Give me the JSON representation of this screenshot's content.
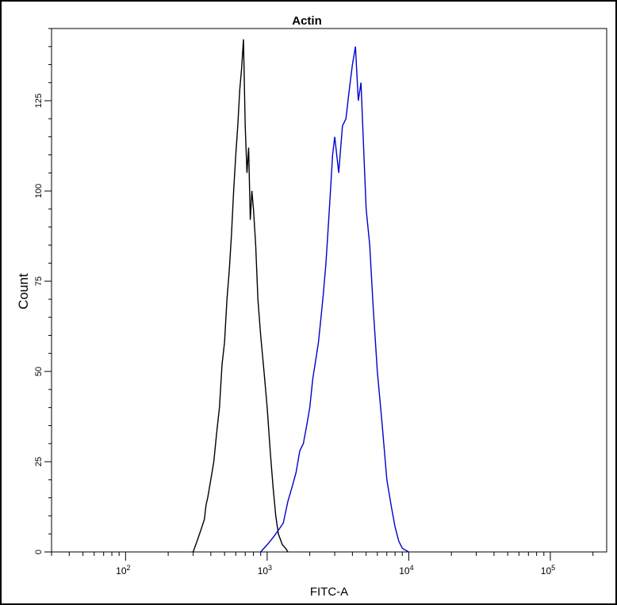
{
  "chart_data": {
    "type": "line",
    "title": "Actin",
    "xlabel": "FITC-A",
    "ylabel": "Count",
    "x_scale": "log",
    "xlim": [
      30,
      250000
    ],
    "ylim": [
      0,
      145
    ],
    "x_ticks": [
      {
        "value": 100,
        "base": "10",
        "exp": "2"
      },
      {
        "value": 1000,
        "base": "10",
        "exp": "3"
      },
      {
        "value": 10000,
        "base": "10",
        "exp": "4"
      },
      {
        "value": 100000,
        "base": "10",
        "exp": "5"
      }
    ],
    "y_ticks": [
      0,
      25,
      50,
      75,
      100,
      125
    ],
    "series": [
      {
        "color": "#000000",
        "points": [
          [
            300,
            0
          ],
          [
            320,
            3
          ],
          [
            340,
            6
          ],
          [
            360,
            9
          ],
          [
            370,
            13
          ],
          [
            380,
            15
          ],
          [
            400,
            20
          ],
          [
            420,
            25
          ],
          [
            440,
            33
          ],
          [
            460,
            40
          ],
          [
            480,
            52
          ],
          [
            500,
            58
          ],
          [
            520,
            70
          ],
          [
            540,
            78
          ],
          [
            560,
            88
          ],
          [
            580,
            100
          ],
          [
            600,
            110
          ],
          [
            620,
            118
          ],
          [
            640,
            128
          ],
          [
            660,
            134
          ],
          [
            680,
            142
          ],
          [
            700,
            118
          ],
          [
            720,
            105
          ],
          [
            740,
            112
          ],
          [
            760,
            92
          ],
          [
            780,
            100
          ],
          [
            800,
            95
          ],
          [
            830,
            85
          ],
          [
            860,
            70
          ],
          [
            900,
            60
          ],
          [
            950,
            50
          ],
          [
            1000,
            40
          ],
          [
            1050,
            28
          ],
          [
            1100,
            18
          ],
          [
            1150,
            10
          ],
          [
            1200,
            5
          ],
          [
            1280,
            2
          ],
          [
            1350,
            1
          ],
          [
            1400,
            0
          ]
        ]
      },
      {
        "color": "#0000cc",
        "points": [
          [
            900,
            0
          ],
          [
            1000,
            2
          ],
          [
            1100,
            4
          ],
          [
            1200,
            6
          ],
          [
            1300,
            8
          ],
          [
            1400,
            14
          ],
          [
            1500,
            18
          ],
          [
            1600,
            22
          ],
          [
            1700,
            28
          ],
          [
            1800,
            30
          ],
          [
            1900,
            35
          ],
          [
            2000,
            40
          ],
          [
            2100,
            48
          ],
          [
            2200,
            53
          ],
          [
            2300,
            58
          ],
          [
            2400,
            65
          ],
          [
            2500,
            72
          ],
          [
            2600,
            80
          ],
          [
            2700,
            90
          ],
          [
            2800,
            100
          ],
          [
            2900,
            110
          ],
          [
            3000,
            115
          ],
          [
            3200,
            105
          ],
          [
            3400,
            118
          ],
          [
            3600,
            120
          ],
          [
            3800,
            128
          ],
          [
            4000,
            135
          ],
          [
            4200,
            140
          ],
          [
            4400,
            125
          ],
          [
            4600,
            130
          ],
          [
            4800,
            112
          ],
          [
            5000,
            95
          ],
          [
            5300,
            85
          ],
          [
            5600,
            68
          ],
          [
            6000,
            50
          ],
          [
            6500,
            35
          ],
          [
            7000,
            20
          ],
          [
            7500,
            13
          ],
          [
            8000,
            7
          ],
          [
            8500,
            3
          ],
          [
            9000,
            1
          ],
          [
            10000,
            0
          ]
        ]
      }
    ]
  }
}
